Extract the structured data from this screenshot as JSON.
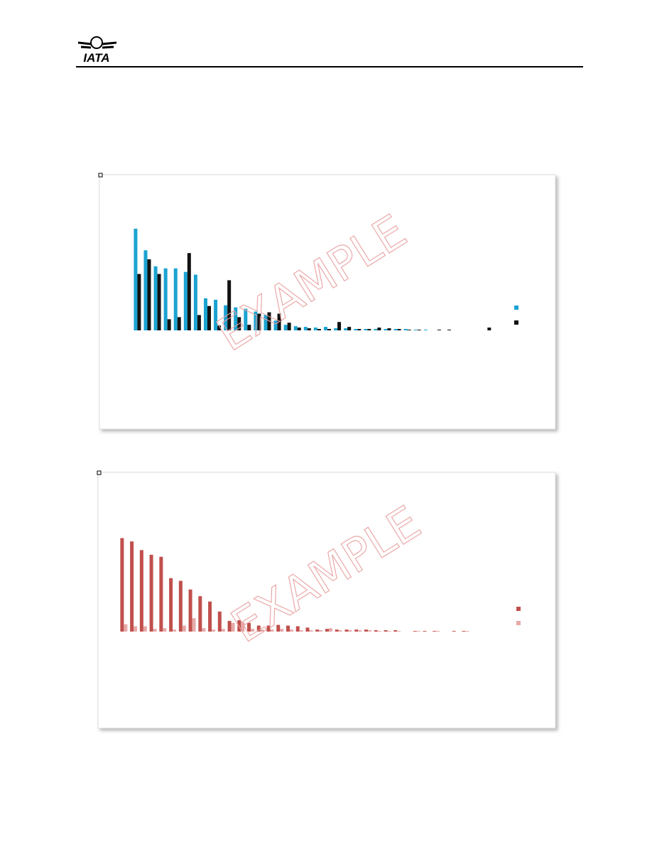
{
  "header": {
    "logo": "IATA"
  },
  "watermark": "EXAMPLE",
  "chart_data": [
    {
      "type": "bar",
      "categories": [
        null,
        null,
        null,
        null,
        null,
        null,
        null,
        null,
        null,
        null,
        null,
        null,
        null,
        null,
        null,
        null,
        null,
        null,
        null,
        null,
        null,
        null,
        null,
        null,
        null,
        null,
        null,
        null,
        null,
        null,
        null,
        null,
        null,
        null,
        null,
        null
      ],
      "ylim": [
        0,
        150
      ],
      "series": [
        {
          "color": "#1ba3d1",
          "values": [
            146,
            115,
            92,
            89,
            89,
            84,
            80,
            46,
            44,
            36,
            33,
            31,
            27,
            22,
            14,
            8,
            6,
            5,
            4,
            5,
            3,
            3,
            2,
            2,
            2,
            2,
            2,
            2,
            1,
            1,
            0,
            0,
            0,
            0,
            0,
            0
          ]
        },
        {
          "color": "#111111",
          "values": [
            81,
            102,
            81,
            16,
            19,
            111,
            22,
            35,
            7,
            72,
            19,
            8,
            24,
            26,
            24,
            11,
            4,
            3,
            2,
            2,
            12,
            5,
            2,
            2,
            4,
            3,
            2,
            1,
            1,
            0,
            1,
            1,
            0,
            0,
            0,
            4
          ]
        }
      ]
    },
    {
      "type": "bar",
      "categories": [
        null,
        null,
        null,
        null,
        null,
        null,
        null,
        null,
        null,
        null,
        null,
        null,
        null,
        null,
        null,
        null,
        null,
        null,
        null,
        null,
        null,
        null,
        null,
        null,
        null,
        null,
        null,
        null,
        null,
        null,
        null,
        null,
        null,
        null,
        null,
        null,
        null,
        null,
        null
      ],
      "ylim": [
        0,
        150
      ],
      "series": [
        {
          "color": "#c0504d",
          "values": [
            140,
            135,
            122,
            115,
            112,
            80,
            76,
            63,
            53,
            45,
            30,
            16,
            17,
            13,
            9,
            9,
            10,
            9,
            8,
            6,
            3,
            4,
            3,
            3,
            3,
            3,
            2,
            2,
            2,
            0,
            1,
            1,
            1,
            0,
            1,
            1,
            0,
            0,
            0
          ]
        },
        {
          "color": "#e6a9a7",
          "values": [
            11,
            8,
            8,
            4,
            5,
            3,
            9,
            20,
            5,
            3,
            4,
            13,
            14,
            4,
            3,
            3,
            4,
            3,
            2,
            2,
            2,
            5,
            2,
            2,
            2,
            2,
            1,
            1,
            1,
            0,
            1,
            0,
            1,
            0,
            0,
            1,
            0,
            0,
            0
          ]
        }
      ]
    }
  ]
}
